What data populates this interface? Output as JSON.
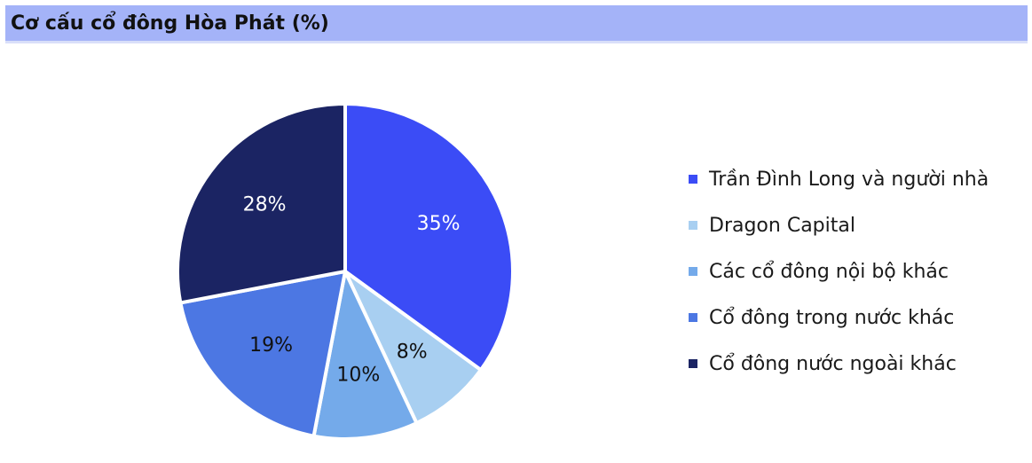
{
  "header": {
    "title": "Cơ cấu cổ đông Hòa Phát (%)"
  },
  "chart_data": {
    "type": "pie",
    "title": "Cơ cấu cổ đông Hòa Phát (%)",
    "legend_position": "right",
    "slices": [
      {
        "label": "Trần Đình Long và người nhà",
        "value": 35,
        "display": "35%",
        "color": "#3b4cf6",
        "text_color": "#ffffff"
      },
      {
        "label": "Dragon Capital",
        "value": 8,
        "display": "8%",
        "color": "#a8cff1",
        "text_color": "#111111"
      },
      {
        "label": "Các cổ đông nội bộ khác",
        "value": 10,
        "display": "10%",
        "color": "#74aaea",
        "text_color": "#111111"
      },
      {
        "label": "Cổ đông trong nước khác",
        "value": 19,
        "display": "19%",
        "color": "#4c77e3",
        "text_color": "#111111"
      },
      {
        "label": "Cổ đông nước ngoài khác",
        "value": 28,
        "display": "28%",
        "color": "#1b2463",
        "text_color": "#ffffff"
      }
    ]
  }
}
